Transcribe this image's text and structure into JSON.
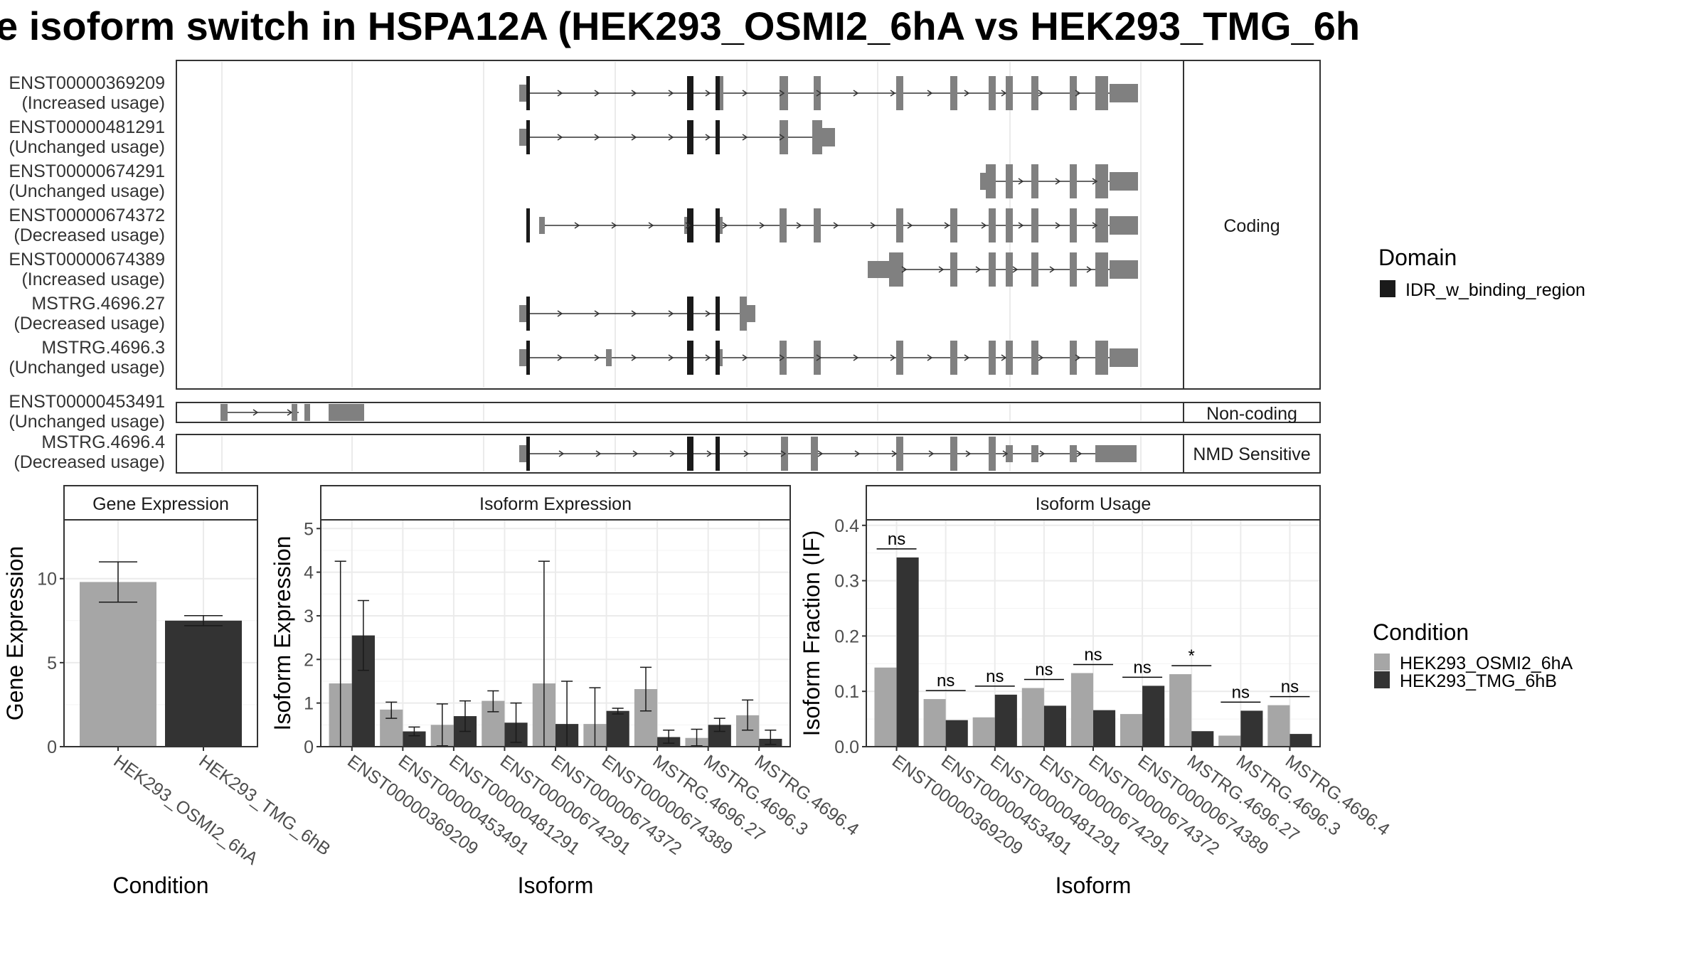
{
  "title": "e isoform switch in HSPA12A (HEK293_OSMI2_6hA vs HEK293_TMG_6h",
  "colors": {
    "exon": "#808080",
    "domain": "#1a1a1a",
    "cond_a": "#a6a6a6",
    "cond_b": "#333333"
  },
  "transcripts": {
    "groups": [
      {
        "label": "Coding",
        "rows": [
          {
            "id": "ENST00000369209",
            "usage": "(Increased usage)"
          },
          {
            "id": "ENST00000481291",
            "usage": "(Unchanged usage)"
          },
          {
            "id": "ENST00000674291",
            "usage": "(Unchanged usage)"
          },
          {
            "id": "ENST00000674372",
            "usage": "(Decreased usage)"
          },
          {
            "id": "ENST00000674389",
            "usage": "(Increased usage)"
          },
          {
            "id": "MSTRG.4696.27",
            "usage": "(Decreased usage)"
          },
          {
            "id": "MSTRG.4696.3",
            "usage": "(Unchanged usage)"
          }
        ]
      },
      {
        "label": "Non-coding",
        "rows": [
          {
            "id": "ENST00000453491",
            "usage": "(Unchanged usage)"
          }
        ]
      },
      {
        "label": "NMD Sensitive",
        "rows": [
          {
            "id": "MSTRG.4696.4",
            "usage": "(Decreased usage)"
          }
        ]
      }
    ]
  },
  "legend_domain": {
    "title": "Domain",
    "items": [
      "IDR_w_binding_region"
    ]
  },
  "legend_condition": {
    "title": "Condition",
    "items": [
      "HEK293_OSMI2_6hA",
      "HEK293_TMG_6hB"
    ]
  },
  "chart_data": [
    {
      "type": "bar",
      "title": "Gene Expression",
      "xlabel": "Condition",
      "ylabel": "Gene Expression",
      "ylim": [
        0,
        13.5
      ],
      "yticks": [
        0,
        5,
        10
      ],
      "categories": [
        "HEK293_OSMI2_6hA",
        "HEK293_TMG_6hB"
      ],
      "values": [
        9.8,
        7.5
      ],
      "errors": [
        [
          8.6,
          11.0
        ],
        [
          7.2,
          7.8
        ]
      ]
    },
    {
      "type": "bar",
      "title": "Isoform Expression",
      "xlabel": "Isoform",
      "ylabel": "Isoform Expression",
      "ylim": [
        0,
        5.2
      ],
      "yticks": [
        0,
        1,
        2,
        3,
        4,
        5
      ],
      "categories": [
        "ENST00000369209",
        "ENST00000453491",
        "ENST00000481291",
        "ENST00000674291",
        "ENST00000674372",
        "ENST00000674389",
        "MSTRG.4696.27",
        "MSTRG.4696.3",
        "MSTRG.4696.4"
      ],
      "series": [
        {
          "name": "HEK293_OSMI2_6hA",
          "values": [
            1.45,
            0.85,
            0.5,
            1.05,
            1.45,
            0.52,
            1.32,
            0.2,
            0.72
          ],
          "errors": [
            [
              0,
              4.25
            ],
            [
              0.65,
              1.02
            ],
            [
              0.02,
              0.98
            ],
            [
              0.8,
              1.28
            ],
            [
              0,
              4.25
            ],
            [
              0,
              1.35
            ],
            [
              0.82,
              1.82
            ],
            [
              0.02,
              0.4
            ],
            [
              0.38,
              1.07
            ]
          ]
        },
        {
          "name": "HEK293_TMG_6hB",
          "values": [
            2.55,
            0.35,
            0.7,
            0.55,
            0.52,
            0.82,
            0.22,
            0.5,
            0.18
          ],
          "errors": [
            [
              1.75,
              3.35
            ],
            [
              0.25,
              0.45
            ],
            [
              0.35,
              1.05
            ],
            [
              0.1,
              1.0
            ],
            [
              0,
              1.5
            ],
            [
              0.75,
              0.88
            ],
            [
              0.08,
              0.38
            ],
            [
              0.35,
              0.65
            ],
            [
              0.05,
              0.38
            ]
          ]
        }
      ]
    },
    {
      "type": "bar",
      "title": "Isoform Usage",
      "xlabel": "Isoform",
      "ylabel": "Isoform Fraction (IF)",
      "ylim": [
        0,
        0.41
      ],
      "yticks": [
        0.0,
        0.1,
        0.2,
        0.3,
        0.4
      ],
      "yticklabels": [
        "0.0",
        "0.1",
        "0.2",
        "0.3",
        "0.4"
      ],
      "categories": [
        "ENST00000369209",
        "ENST00000453491",
        "ENST00000481291",
        "ENST00000674291",
        "ENST00000674372",
        "ENST00000674389",
        "MSTRG.4696.27",
        "MSTRG.4696.3",
        "MSTRG.4696.4"
      ],
      "series": [
        {
          "name": "HEK293_OSMI2_6hA",
          "values": [
            0.143,
            0.086,
            0.053,
            0.106,
            0.133,
            0.059,
            0.131,
            0.02,
            0.075
          ]
        },
        {
          "name": "HEK293_TMG_6hB",
          "values": [
            0.342,
            0.048,
            0.094,
            0.074,
            0.066,
            0.11,
            0.028,
            0.065,
            0.023
          ]
        }
      ],
      "significance": [
        "ns",
        "ns",
        "ns",
        "ns",
        "ns",
        "ns",
        "*",
        "ns",
        "ns"
      ]
    }
  ]
}
